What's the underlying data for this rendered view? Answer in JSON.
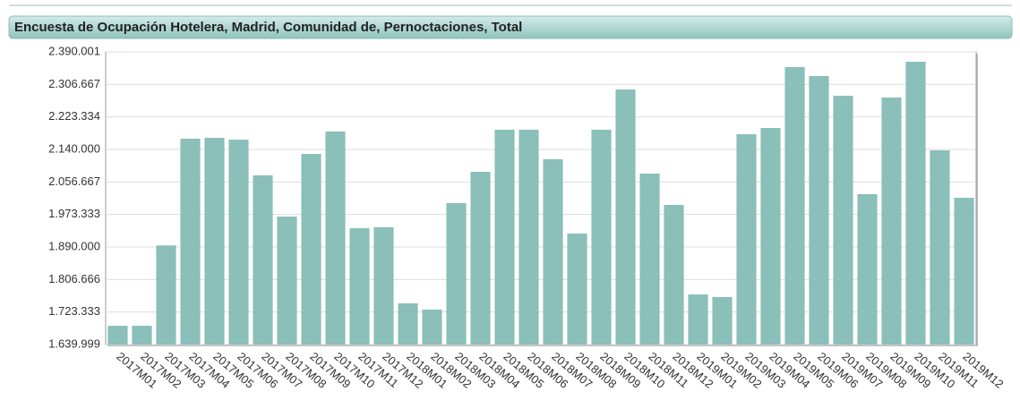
{
  "chart_data": {
    "type": "bar",
    "title": "Encuesta de Ocupación Hotelera, Madrid, Comunidad de, Pernoctaciones, Total",
    "categories": [
      "2017M01",
      "2017M02",
      "2017M03",
      "2017M04",
      "2017M05",
      "2017M06",
      "2017M07",
      "2017M08",
      "2017M09",
      "2017M10",
      "2017M11",
      "2017M12",
      "2018M01",
      "2018M02",
      "2018M03",
      "2018M04",
      "2018M05",
      "2018M06",
      "2018M07",
      "2018M08",
      "2018M09",
      "2018M10",
      "2018M11",
      "2018M12",
      "2019M01",
      "2019M02",
      "2019M03",
      "2019M04",
      "2019M05",
      "2019M06",
      "2019M07",
      "2019M08",
      "2019M09",
      "2019M10",
      "2019M11",
      "2019M12"
    ],
    "values": [
      1688000,
      1688000,
      1894000,
      2167500,
      2169800,
      2165000,
      2073500,
      1968000,
      2128500,
      2186000,
      1938000,
      1940500,
      1745500,
      1729500,
      2002400,
      2082700,
      2190500,
      2190500,
      2114800,
      1924400,
      2190500,
      2293700,
      2078100,
      1997800,
      1768400,
      1761600,
      2179000,
      2195000,
      2351000,
      2328000,
      2277600,
      2025300,
      2273000,
      2364800,
      2137700,
      2016100
    ],
    "color": "#8abfba",
    "ylim": [
      1639999,
      2390001
    ],
    "yticks": [
      {
        "value": 2390001,
        "label": "2.390.001"
      },
      {
        "value": 2306667,
        "label": "2.306.667"
      },
      {
        "value": 2223334,
        "label": "2.223.334"
      },
      {
        "value": 2140000,
        "label": "2.140.000"
      },
      {
        "value": 2056667,
        "label": "2.056.667"
      },
      {
        "value": 1973333,
        "label": "1.973.333"
      },
      {
        "value": 1890000,
        "label": "1.890.000"
      },
      {
        "value": 1806666,
        "label": "1.806.666"
      },
      {
        "value": 1723333,
        "label": "1.723.333"
      },
      {
        "value": 1639999,
        "label": "1.639.999"
      }
    ],
    "grid": true
  }
}
